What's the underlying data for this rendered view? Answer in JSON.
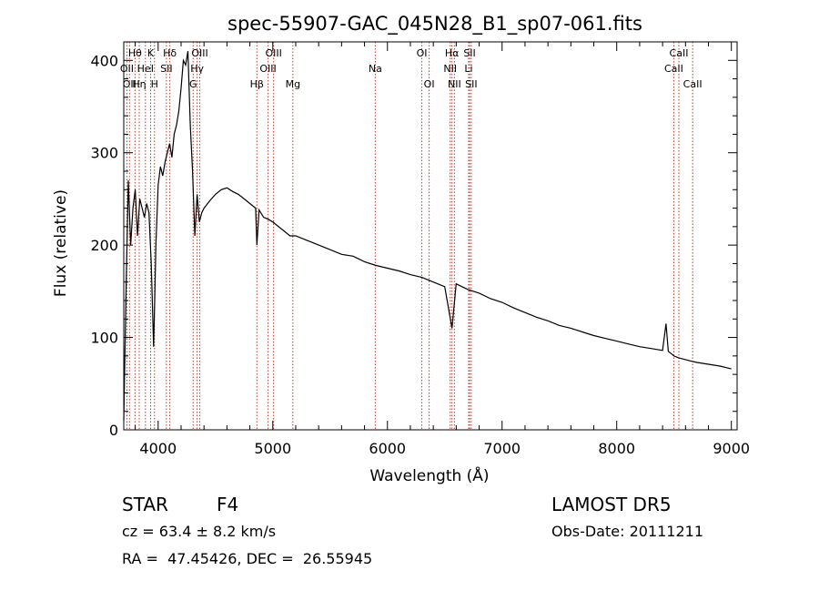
{
  "chart_data": {
    "type": "line",
    "title": "spec-55907-GAC_045N28_B1_sp07-061.fits",
    "xlabel": "Wavelength (Å)",
    "ylabel": "Flux (relative)",
    "xlim": [
      3700,
      9050
    ],
    "ylim": [
      0,
      420
    ],
    "xticks": [
      4000,
      5000,
      6000,
      7000,
      8000,
      9000
    ],
    "yticks": [
      0,
      100,
      200,
      300,
      400
    ],
    "line_color": "#000000",
    "marker_color": "#c0392b",
    "series": [
      {
        "x": [
          3700,
          3720,
          3740,
          3760,
          3780,
          3800,
          3820,
          3840,
          3860,
          3880,
          3900,
          3920,
          3940,
          3960,
          3970,
          3980,
          4000,
          4020,
          4040,
          4060,
          4080,
          4100,
          4120,
          4140,
          4160,
          4180,
          4200,
          4220,
          4240,
          4260,
          4280,
          4300,
          4320,
          4340,
          4360,
          4380,
          4400,
          4450,
          4500,
          4550,
          4600,
          4650,
          4700,
          4750,
          4800,
          4850,
          4861,
          4880,
          4920,
          4960,
          5000,
          5050,
          5100,
          5150,
          5200,
          5300,
          5400,
          5500,
          5600,
          5700,
          5800,
          5900,
          6000,
          6100,
          6200,
          6300,
          6400,
          6500,
          6563,
          6600,
          6700,
          6800,
          6900,
          7000,
          7100,
          7200,
          7300,
          7400,
          7500,
          7600,
          7700,
          7800,
          7900,
          8000,
          8100,
          8200,
          8300,
          8400,
          8430,
          8450,
          8480,
          8500,
          8540,
          8600,
          8660,
          8700,
          8800,
          8900,
          9000
        ],
        "y": [
          10,
          150,
          270,
          200,
          240,
          260,
          210,
          250,
          240,
          230,
          245,
          235,
          180,
          90,
          140,
          200,
          265,
          285,
          275,
          290,
          300,
          310,
          295,
          320,
          330,
          345,
          370,
          400,
          395,
          410,
          330,
          280,
          210,
          255,
          225,
          235,
          240,
          248,
          255,
          260,
          262,
          258,
          255,
          250,
          245,
          240,
          200,
          238,
          230,
          228,
          225,
          220,
          215,
          210,
          210,
          205,
          200,
          195,
          190,
          188,
          182,
          178,
          175,
          172,
          168,
          165,
          160,
          155,
          110,
          158,
          152,
          148,
          142,
          138,
          132,
          127,
          122,
          118,
          113,
          110,
          106,
          102,
          99,
          96,
          93,
          90,
          88,
          86,
          115,
          85,
          82,
          80,
          78,
          76,
          74,
          73,
          71,
          69,
          66
        ]
      }
    ],
    "lines": [
      {
        "x": 3727,
        "label": "OII",
        "row": 2
      },
      {
        "x": 3750,
        "label": "OII",
        "row": 3
      },
      {
        "x": 3798,
        "label": "Hθ",
        "row": 1
      },
      {
        "x": 3835,
        "label": "Hη",
        "row": 3
      },
      {
        "x": 3889,
        "label": "HeI",
        "row": 2
      },
      {
        "x": 3934,
        "label": "K",
        "row": 1
      },
      {
        "x": 3968,
        "label": "H",
        "row": 3
      },
      {
        "x": 4072,
        "label": "SII",
        "row": 2
      },
      {
        "x": 4102,
        "label": "Hδ",
        "row": 1
      },
      {
        "x": 4305,
        "label": "G",
        "row": 3
      },
      {
        "x": 4340,
        "label": "Hγ",
        "row": 2
      },
      {
        "x": 4363,
        "label": "OIII",
        "row": 1
      },
      {
        "x": 4861,
        "label": "Hβ",
        "row": 3
      },
      {
        "x": 4959,
        "label": "OIII",
        "row": 2
      },
      {
        "x": 5007,
        "label": "OIII",
        "row": 1
      },
      {
        "x": 5175,
        "label": "Mg",
        "row": 3
      },
      {
        "x": 5894,
        "label": "Na",
        "row": 2
      },
      {
        "x": 6300,
        "label": "OI",
        "row": 1
      },
      {
        "x": 6364,
        "label": "OI",
        "row": 3
      },
      {
        "x": 6548,
        "label": "NII",
        "row": 2
      },
      {
        "x": 6563,
        "label": "Hα",
        "row": 1
      },
      {
        "x": 6584,
        "label": "NII",
        "row": 3
      },
      {
        "x": 6708,
        "label": "Li",
        "row": 2
      },
      {
        "x": 6717,
        "label": "SII",
        "row": 1
      },
      {
        "x": 6731,
        "label": "SII",
        "row": 3
      },
      {
        "x": 8498,
        "label": "CaII",
        "row": 2
      },
      {
        "x": 8542,
        "label": "CaII",
        "row": 1
      },
      {
        "x": 8662,
        "label": "CaII",
        "row": 3
      }
    ]
  },
  "info": {
    "class": "STAR",
    "subclass": "F4",
    "survey": "LAMOST DR5",
    "cz": "cz = 63.4 ± 8.2 km/s",
    "obs_date": "Obs-Date: 20111211",
    "coords": "RA =  47.45426, DEC =  26.55945"
  }
}
